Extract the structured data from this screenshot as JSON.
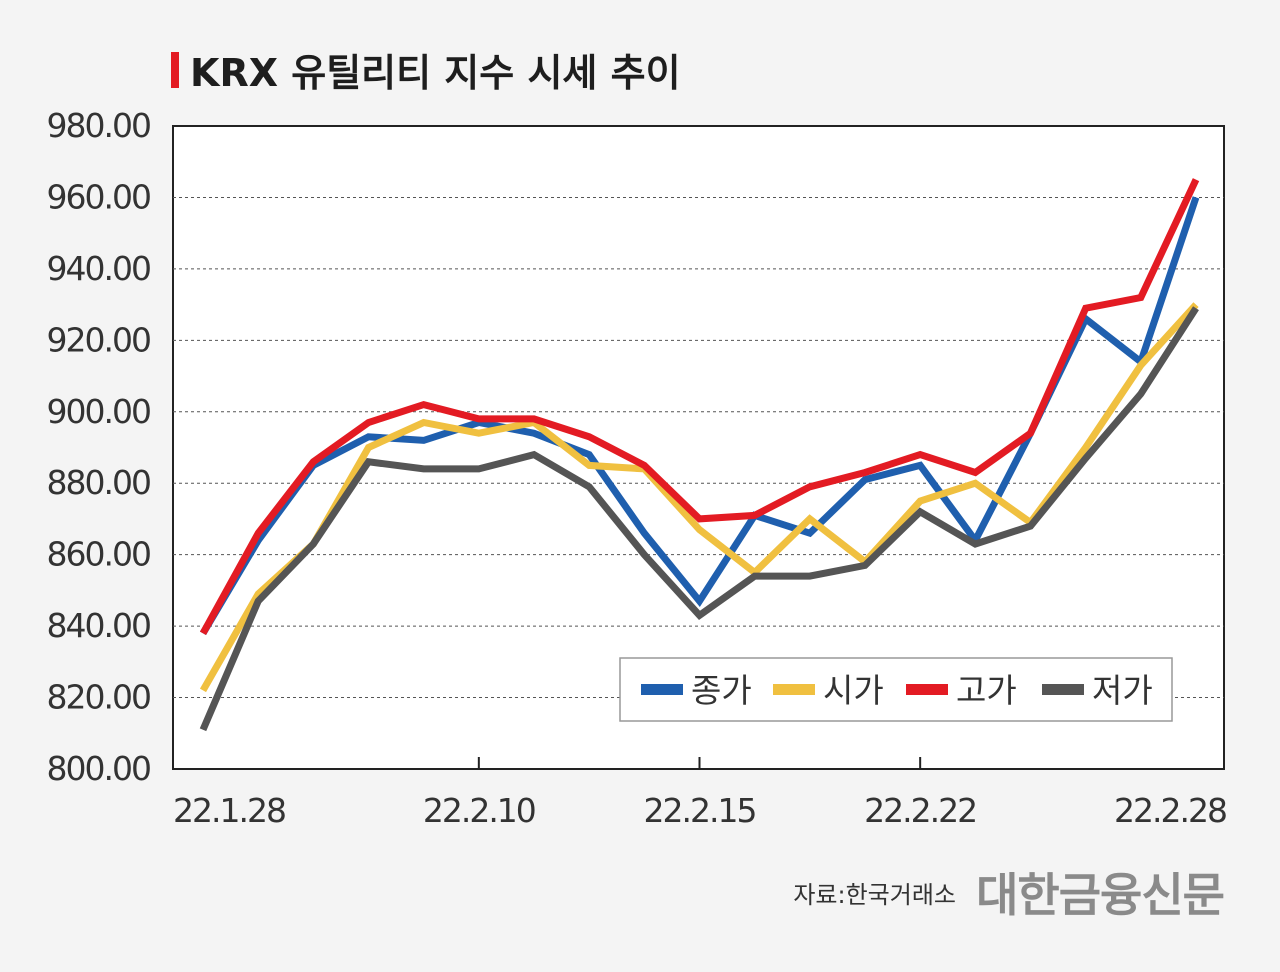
{
  "title": "KRX 유틸리티 지수 시세 추이",
  "source": "자료:한국거래소",
  "brand": "대한금융신문",
  "colors": {
    "accent": "#e31b23",
    "close": "#1f5fae",
    "open": "#f0c040",
    "high": "#e31b23",
    "low": "#555555",
    "plot_bg": "#ffffff",
    "page_bg": "#f4f4f4"
  },
  "chart_data": {
    "type": "line",
    "title": "KRX 유틸리티 지수 시세 추이",
    "xlabel": "",
    "ylabel": "",
    "ylim": [
      800,
      980
    ],
    "yticks": [
      "800.00",
      "820.00",
      "840.00",
      "860.00",
      "880.00",
      "900.00",
      "920.00",
      "940.00",
      "960.00",
      "980.00"
    ],
    "xtick_labels": [
      "22.1.28",
      "22.2.10",
      "22.2.15",
      "22.2.22",
      "22.2.28"
    ],
    "xtick_index": [
      0,
      5,
      9,
      13,
      18
    ],
    "grid": true,
    "legend_position": "bottom-right",
    "series": [
      {
        "name": "종가",
        "color": "#1f5fae",
        "values": [
          838,
          864,
          885,
          893,
          892,
          897,
          894,
          888,
          866,
          847,
          871,
          866,
          881,
          885,
          864,
          894,
          926,
          914,
          960
        ]
      },
      {
        "name": "시가",
        "color": "#f0c040",
        "values": [
          822,
          849,
          863,
          890,
          897,
          894,
          897,
          885,
          884,
          867,
          855,
          870,
          858,
          875,
          880,
          869,
          890,
          913,
          930
        ]
      },
      {
        "name": "고가",
        "color": "#e31b23",
        "values": [
          838,
          866,
          886,
          897,
          902,
          898,
          898,
          893,
          885,
          870,
          871,
          879,
          883,
          888,
          883,
          894,
          929,
          932,
          965
        ]
      },
      {
        "name": "저가",
        "color": "#555555",
        "values": [
          811,
          847,
          863,
          886,
          884,
          884,
          888,
          879,
          860,
          843,
          854,
          854,
          857,
          872,
          863,
          868,
          887,
          905,
          929
        ]
      }
    ]
  }
}
